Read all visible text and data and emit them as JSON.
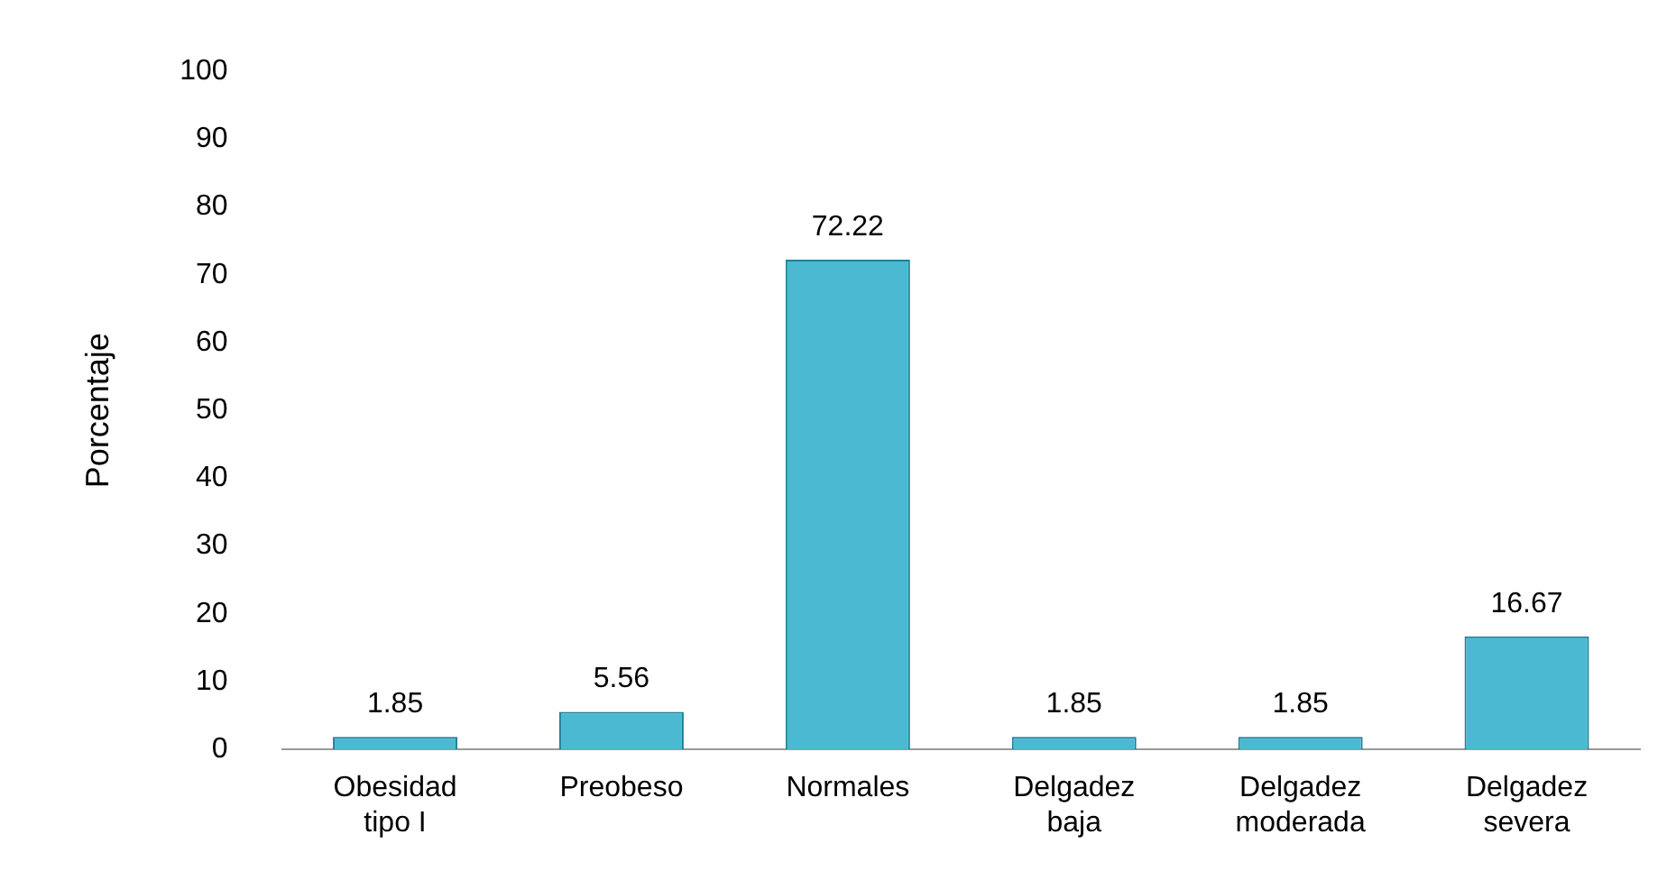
{
  "chart_data": {
    "type": "bar",
    "ylabel": "Porcentaje",
    "categories": [
      "Obesidad tipo I",
      "Preobeso",
      "Normales",
      "Delgadez baja",
      "Delgadez moderada",
      "Delgadez severa"
    ],
    "values": [
      1.85,
      5.56,
      72.22,
      1.85,
      1.85,
      16.67
    ],
    "color": "#4bb9d2",
    "ylim": [
      0,
      100
    ],
    "yticks": [
      0,
      10,
      20,
      30,
      40,
      50,
      60,
      70,
      80,
      90,
      100
    ],
    "grid": false,
    "legend": false,
    "data_labels": true
  }
}
